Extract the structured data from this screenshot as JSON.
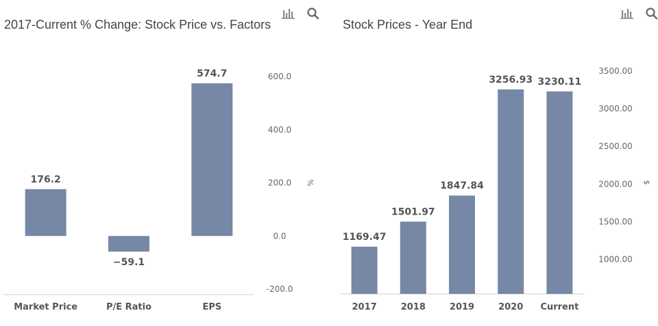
{
  "toolbar": {
    "icons": [
      "bar-chart-icon",
      "search-icon"
    ]
  },
  "chart_data": [
    {
      "type": "bar",
      "title": "2017-Current % Change: Stock Price vs. Factors",
      "categories": [
        "Market Price",
        "P/E Ratio",
        "EPS"
      ],
      "values": [
        176.2,
        -59.1,
        574.7
      ],
      "data_labels": [
        "176.2",
        "−59.1",
        "574.7"
      ],
      "yticks": [
        "600.0",
        "400.0",
        "200.0",
        "0.0",
        "-200.0"
      ],
      "ytick_values": [
        600,
        400,
        200,
        0,
        -200
      ],
      "ylabel": "%",
      "ylim": [
        -200,
        600
      ],
      "y_axis_side": "right",
      "grid": false,
      "color": "#7688a5"
    },
    {
      "type": "bar",
      "title": "Stock Prices - Year End",
      "categories": [
        "2017",
        "2018",
        "2019",
        "2020",
        "Current"
      ],
      "values": [
        1169.47,
        1501.97,
        1847.84,
        3256.93,
        3230.11
      ],
      "data_labels": [
        "1169.47",
        "1501.97",
        "1847.84",
        "3256.93",
        "3230.11"
      ],
      "yticks": [
        "3500.00",
        "3000.00",
        "2500.00",
        "2000.00",
        "1500.00",
        "1000.00"
      ],
      "ytick_values": [
        3500,
        3000,
        2500,
        2000,
        1500,
        1000
      ],
      "ylabel": "$",
      "ylim": [
        543,
        3500
      ],
      "y_axis_side": "right",
      "grid": false,
      "color": "#7688a5"
    }
  ]
}
